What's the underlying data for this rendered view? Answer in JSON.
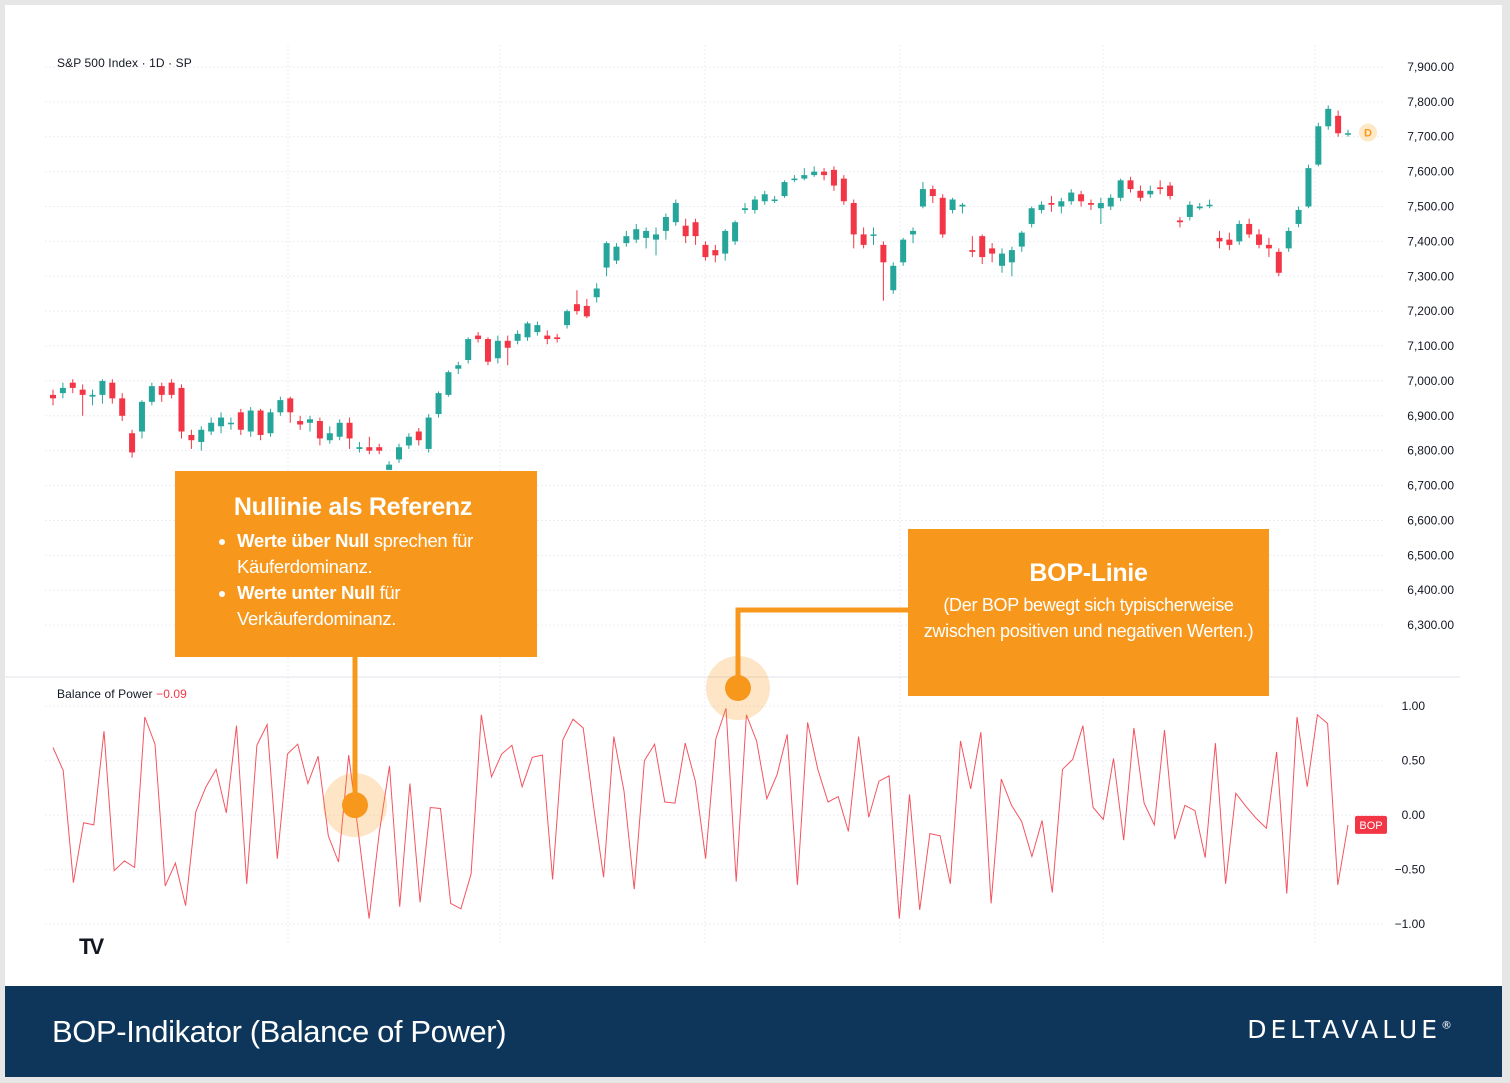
{
  "chart_data": [
    {
      "type": "candlestick",
      "title": "S&P 500 Index · 1D · SP",
      "ylim": [
        6220,
        7920
      ],
      "y_ticks": [
        "7,900.00",
        "7,800.00",
        "7,700.00",
        "7,600.00",
        "7,500.00",
        "7,400.00",
        "7,300.00",
        "7,200.00",
        "7,100.00",
        "7,000.00",
        "6,900.00",
        "6,800.00",
        "6,700.00",
        "6,600.00",
        "6,500.00",
        "6,400.00",
        "6,300.00"
      ],
      "last_bar_label": "D",
      "colors": {
        "up": "#26a69a",
        "down": "#f23645",
        "grid": "#dcdcdc",
        "marker": "#f7981d"
      },
      "candles": [
        [
          6960,
          6950,
          6975,
          6930
        ],
        [
          6965,
          6980,
          6995,
          6950
        ],
        [
          6995,
          6980,
          7005,
          6965
        ],
        [
          6975,
          6960,
          6990,
          6900
        ],
        [
          6955,
          6960,
          6975,
          6930
        ],
        [
          6960,
          7000,
          7005,
          6935
        ],
        [
          6995,
          6950,
          7005,
          6935
        ],
        [
          6950,
          6900,
          6965,
          6885
        ],
        [
          6850,
          6795,
          6860,
          6780
        ],
        [
          6855,
          6940,
          6945,
          6835
        ],
        [
          6940,
          6985,
          6995,
          6930
        ],
        [
          6985,
          6960,
          6995,
          6940
        ],
        [
          6995,
          6960,
          7005,
          6950
        ],
        [
          6980,
          6855,
          6990,
          6835
        ],
        [
          6845,
          6830,
          6860,
          6805
        ],
        [
          6825,
          6860,
          6870,
          6800
        ],
        [
          6855,
          6880,
          6895,
          6845
        ],
        [
          6870,
          6895,
          6910,
          6850
        ],
        [
          6880,
          6880,
          6895,
          6860
        ],
        [
          6910,
          6860,
          6920,
          6845
        ],
        [
          6855,
          6915,
          6925,
          6840
        ],
        [
          6915,
          6845,
          6920,
          6830
        ],
        [
          6850,
          6910,
          6920,
          6840
        ],
        [
          6910,
          6945,
          6955,
          6900
        ],
        [
          6950,
          6910,
          6955,
          6880
        ],
        [
          6885,
          6875,
          6900,
          6860
        ],
        [
          6880,
          6890,
          6900,
          6855
        ],
        [
          6885,
          6835,
          6895,
          6815
        ],
        [
          6830,
          6850,
          6870,
          6820
        ],
        [
          6840,
          6880,
          6890,
          6830
        ],
        [
          6880,
          6835,
          6895,
          6805
        ],
        [
          6805,
          6810,
          6825,
          6795
        ],
        [
          6810,
          6800,
          6840,
          6790
        ],
        [
          6810,
          6800,
          6820,
          6790
        ],
        [
          6745,
          6760,
          6770,
          6745
        ],
        [
          6775,
          6810,
          6820,
          6765
        ],
        [
          6815,
          6840,
          6850,
          6805
        ],
        [
          6855,
          6830,
          6865,
          6815
        ],
        [
          6805,
          6895,
          6905,
          6795
        ],
        [
          6905,
          6965,
          6970,
          6895
        ],
        [
          6960,
          7025,
          7030,
          6955
        ],
        [
          7035,
          7045,
          7055,
          7020
        ],
        [
          7060,
          7120,
          7125,
          7050
        ],
        [
          7130,
          7120,
          7140,
          7110
        ],
        [
          7120,
          7055,
          7125,
          7045
        ],
        [
          7065,
          7115,
          7130,
          7050
        ],
        [
          7115,
          7095,
          7130,
          7045
        ],
        [
          7115,
          7135,
          7145,
          7105
        ],
        [
          7125,
          7165,
          7170,
          7115
        ],
        [
          7140,
          7160,
          7170,
          7130
        ],
        [
          7130,
          7120,
          7145,
          7105
        ],
        [
          7125,
          7120,
          7135,
          7110
        ],
        [
          7160,
          7200,
          7205,
          7150
        ],
        [
          7220,
          7200,
          7260,
          7190
        ],
        [
          7215,
          7185,
          7235,
          7180
        ],
        [
          7240,
          7265,
          7280,
          7225
        ],
        [
          7325,
          7395,
          7400,
          7300
        ],
        [
          7345,
          7385,
          7395,
          7335
        ],
        [
          7395,
          7415,
          7430,
          7385
        ],
        [
          7405,
          7435,
          7450,
          7395
        ],
        [
          7410,
          7430,
          7440,
          7380
        ],
        [
          7405,
          7420,
          7440,
          7360
        ],
        [
          7430,
          7470,
          7480,
          7405
        ],
        [
          7455,
          7510,
          7520,
          7445
        ],
        [
          7445,
          7415,
          7465,
          7395
        ],
        [
          7455,
          7415,
          7465,
          7390
        ],
        [
          7390,
          7355,
          7400,
          7345
        ],
        [
          7375,
          7360,
          7390,
          7340
        ],
        [
          7365,
          7430,
          7435,
          7345
        ],
        [
          7400,
          7455,
          7460,
          7390
        ],
        [
          7490,
          7495,
          7510,
          7480
        ],
        [
          7490,
          7520,
          7530,
          7480
        ],
        [
          7515,
          7535,
          7545,
          7505
        ],
        [
          7520,
          7520,
          7530,
          7510
        ],
        [
          7530,
          7570,
          7575,
          7525
        ],
        [
          7580,
          7580,
          7590,
          7570
        ],
        [
          7580,
          7590,
          7610,
          7575
        ],
        [
          7590,
          7600,
          7615,
          7585
        ],
        [
          7600,
          7590,
          7610,
          7575
        ],
        [
          7605,
          7560,
          7615,
          7545
        ],
        [
          7580,
          7515,
          7590,
          7505
        ],
        [
          7510,
          7420,
          7520,
          7380
        ],
        [
          7420,
          7390,
          7440,
          7380
        ],
        [
          7420,
          7420,
          7440,
          7390
        ],
        [
          7390,
          7340,
          7400,
          7230
        ],
        [
          7260,
          7330,
          7340,
          7250
        ],
        [
          7340,
          7405,
          7410,
          7330
        ],
        [
          7420,
          7430,
          7440,
          7395
        ],
        [
          7500,
          7550,
          7570,
          7495
        ],
        [
          7550,
          7530,
          7560,
          7510
        ],
        [
          7525,
          7420,
          7535,
          7410
        ],
        [
          7490,
          7520,
          7525,
          7480
        ],
        [
          7500,
          7505,
          7510,
          7480
        ],
        [
          7375,
          7370,
          7415,
          7355
        ],
        [
          7415,
          7355,
          7420,
          7335
        ],
        [
          7380,
          7365,
          7395,
          7340
        ],
        [
          7330,
          7365,
          7380,
          7310
        ],
        [
          7340,
          7375,
          7385,
          7300
        ],
        [
          7385,
          7425,
          7430,
          7370
        ],
        [
          7450,
          7495,
          7500,
          7440
        ],
        [
          7490,
          7505,
          7515,
          7480
        ],
        [
          7510,
          7505,
          7530,
          7485
        ],
        [
          7500,
          7515,
          7525,
          7480
        ],
        [
          7515,
          7540,
          7550,
          7505
        ],
        [
          7535,
          7515,
          7545,
          7500
        ],
        [
          7510,
          7505,
          7520,
          7490
        ],
        [
          7495,
          7510,
          7525,
          7450
        ],
        [
          7500,
          7525,
          7535,
          7490
        ],
        [
          7525,
          7575,
          7580,
          7515
        ],
        [
          7575,
          7550,
          7585,
          7540
        ],
        [
          7545,
          7525,
          7560,
          7515
        ],
        [
          7535,
          7545,
          7560,
          7525
        ],
        [
          7555,
          7550,
          7575,
          7535
        ],
        [
          7560,
          7530,
          7570,
          7520
        ],
        [
          7460,
          7455,
          7470,
          7440
        ],
        [
          7470,
          7505,
          7515,
          7460
        ],
        [
          7495,
          7500,
          7510,
          7490
        ],
        [
          7505,
          7505,
          7520,
          7495
        ],
        [
          7410,
          7400,
          7430,
          7380
        ],
        [
          7405,
          7390,
          7425,
          7375
        ],
        [
          7400,
          7450,
          7460,
          7390
        ],
        [
          7450,
          7420,
          7465,
          7410
        ],
        [
          7420,
          7390,
          7435,
          7380
        ],
        [
          7390,
          7380,
          7410,
          7355
        ],
        [
          7370,
          7310,
          7380,
          7300
        ],
        [
          7380,
          7430,
          7440,
          7370
        ],
        [
          7450,
          7490,
          7500,
          7440
        ],
        [
          7500,
          7610,
          7620,
          7495
        ],
        [
          7620,
          7730,
          7740,
          7615
        ],
        [
          7730,
          7780,
          7790,
          7720
        ],
        [
          7760,
          7710,
          7775,
          7700
        ],
        [
          7710,
          7710,
          7720,
          7700
        ]
      ],
      "marker": {
        "value": 7712
      },
      "position": "left"
    },
    {
      "type": "line",
      "title": "Balance of Power",
      "last_value": "−0.09",
      "ylim": [
        -1.1,
        1.12
      ],
      "y_ticks": [
        "1.00",
        "0.50",
        "0.00",
        "−0.50",
        "−1.00"
      ],
      "series_label": "BOP",
      "color": "#f23645",
      "values": [
        0.62,
        0.41,
        -0.62,
        -0.07,
        -0.09,
        0.77,
        -0.51,
        -0.42,
        -0.48,
        0.9,
        0.65,
        -0.65,
        -0.44,
        -0.83,
        0.03,
        0.26,
        0.42,
        0.02,
        0.82,
        -0.63,
        0.64,
        0.83,
        -0.4,
        0.56,
        0.65,
        0.29,
        0.54,
        -0.19,
        -0.43,
        0.55,
        -0.2,
        -0.95,
        -0.16,
        0.45,
        -0.84,
        0.29,
        -0.8,
        0.07,
        0.06,
        -0.81,
        -0.86,
        -0.54,
        0.92,
        0.35,
        0.56,
        0.64,
        0.26,
        0.53,
        0.55,
        -0.59,
        0.69,
        0.88,
        0.8,
        0.09,
        -0.57,
        0.72,
        0.22,
        -0.68,
        0.5,
        0.65,
        0.12,
        0.11,
        0.66,
        0.31,
        -0.4,
        0.7,
        0.98,
        -0.61,
        0.92,
        0.68,
        0.15,
        0.37,
        0.74,
        -0.64,
        0.85,
        0.42,
        0.12,
        0.17,
        -0.15,
        0.72,
        -0.02,
        0.31,
        0.36,
        -0.95,
        0.19,
        -0.87,
        -0.17,
        -0.19,
        -0.63,
        0.68,
        0.24,
        0.76,
        -0.81,
        0.33,
        0.09,
        -0.06,
        -0.38,
        -0.05,
        -0.71,
        0.42,
        0.51,
        0.82,
        0.07,
        -0.04,
        0.52,
        -0.23,
        0.8,
        0.11,
        -0.09,
        0.78,
        -0.22,
        0.09,
        0.04,
        -0.39,
        0.66,
        -0.63,
        0.2,
        0.08,
        -0.03,
        -0.12,
        0.58,
        -0.72,
        0.9,
        0.26,
        0.92,
        0.84,
        -0.64,
        -0.09
      ],
      "position": "right"
    }
  ],
  "callouts": {
    "zero_line": {
      "title": "Nullinie als Referenz",
      "item1_bold": "Werte über Null",
      "item1_rest": " sprechen für Käuferdominanz.",
      "item2_bold": "Werte unter Null",
      "item2_rest": " für Verkäuferdominanz."
    },
    "bop_line": {
      "title": "BOP-Linie",
      "text": "(Der BOP bewegt sich typischerweise zwischen positiven und negativen Werten.)"
    }
  },
  "footer": {
    "title": "BOP-Indikator (Balance of Power)",
    "brand": "DELTAVALUE",
    "brand_mark": "®"
  },
  "logo_text": "TV"
}
